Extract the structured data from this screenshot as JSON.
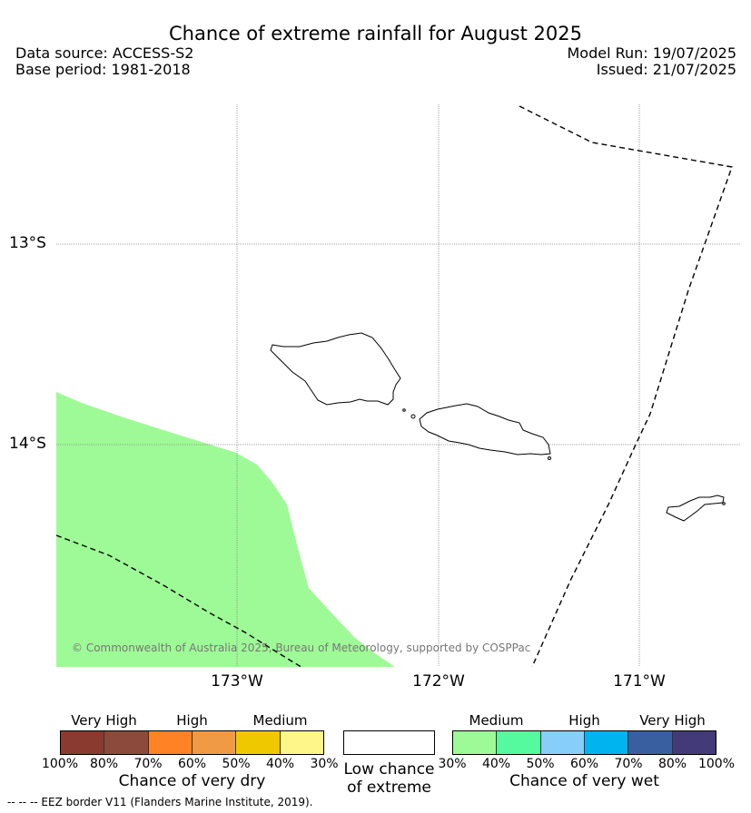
{
  "title": "Chance of extreme rainfall for August 2025",
  "header": {
    "data_source": "Data source: ACCESS-S2",
    "base_period": "Base period: 1981-2018",
    "model_run": "Model Run: 19/07/2025",
    "issued": "Issued: 21/07/2025"
  },
  "map": {
    "lat_labels": [
      "13°S",
      "14°S"
    ],
    "lon_labels": [
      "173°W",
      "172°W",
      "171°W"
    ],
    "attribution": "© Commonwealth of Australia 2025, Bureau of Meteorology, supported by COSPPac",
    "colors": {
      "wet_fill": "#9efa96",
      "eez_line": "#000000",
      "grid": "#888888"
    }
  },
  "legend": {
    "dry": {
      "categories": [
        "Very High",
        "High",
        "Medium"
      ],
      "ticks": [
        "100%",
        "80%",
        "70%",
        "60%",
        "50%",
        "40%",
        "30%"
      ],
      "colors": [
        "#8b3a30",
        "#8b4a3c",
        "#ff8225",
        "#f09a45",
        "#f0c800",
        "#fff68a"
      ],
      "title": "Chance of very dry"
    },
    "low": {
      "line1": "Low chance",
      "line2": "of extreme"
    },
    "wet": {
      "categories": [
        "Medium",
        "High",
        "Very High"
      ],
      "ticks": [
        "30%",
        "40%",
        "50%",
        "60%",
        "70%",
        "80%",
        "100%"
      ],
      "colors": [
        "#9efa96",
        "#55f99e",
        "#87cefa",
        "#00b4f0",
        "#3a5fa0",
        "#433a78"
      ],
      "title": "Chance of very wet"
    }
  },
  "footnote": "--  --  -- EEZ border V11 (Flanders Marine Institute, 2019)."
}
